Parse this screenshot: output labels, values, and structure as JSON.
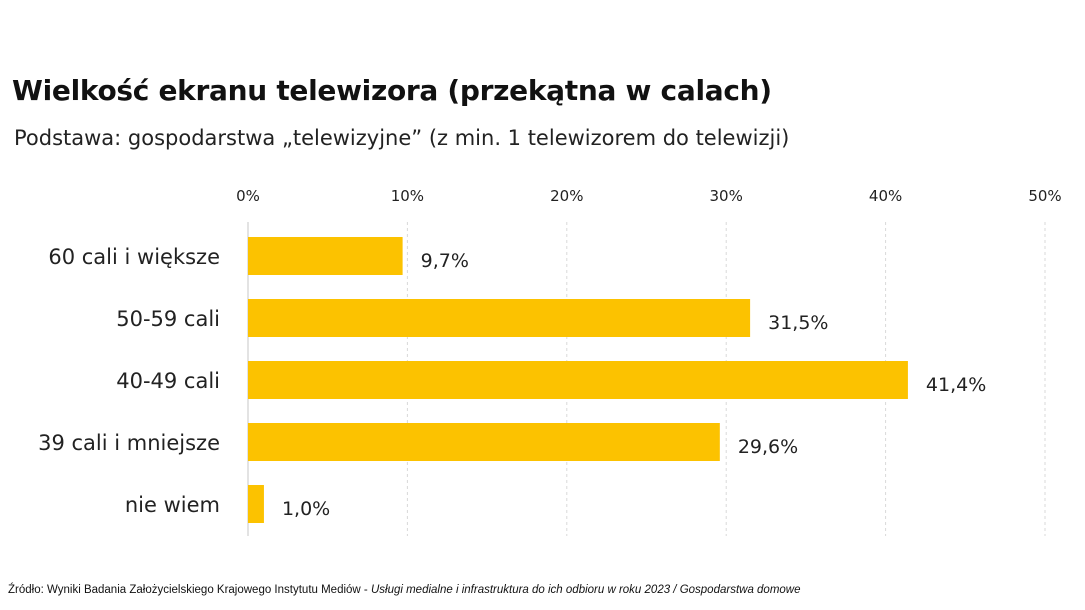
{
  "title": "Wielkość ekranu telewizora (przekątna w calach)",
  "subtitle": "Podstawa: gospodarstwa „telewizyjne” (z min. 1 telewizorem do telewizji)",
  "source": {
    "prefix": "Źródło: Wyniki Badania Założycielskiego Krajowego Instytutu Mediów - ",
    "italic": "Usługi medialne i infrastruktura do ich odbioru w roku 2023 / Gospodarstwa domowe"
  },
  "colors": {
    "bar": "#FCC200",
    "grid": "#d9d9d9",
    "text": "#222222"
  },
  "chart_data": {
    "type": "bar",
    "orientation": "horizontal",
    "categories": [
      "60 cali i większe",
      "50-59 cali",
      "40-49 cali",
      "39 cali i mniejsze",
      "nie wiem"
    ],
    "values": [
      9.7,
      31.5,
      41.4,
      29.6,
      1.0
    ],
    "value_labels": [
      "9,7%",
      "31,5%",
      "41,4%",
      "29,6%",
      "1,0%"
    ],
    "xlim": [
      0,
      50
    ],
    "xticks": [
      0,
      10,
      20,
      30,
      40,
      50
    ],
    "xtick_labels": [
      "0%",
      "10%",
      "20%",
      "30%",
      "40%",
      "50%"
    ],
    "xaxis_position": "top",
    "grid": "vertical-dashed",
    "legend": "none"
  }
}
